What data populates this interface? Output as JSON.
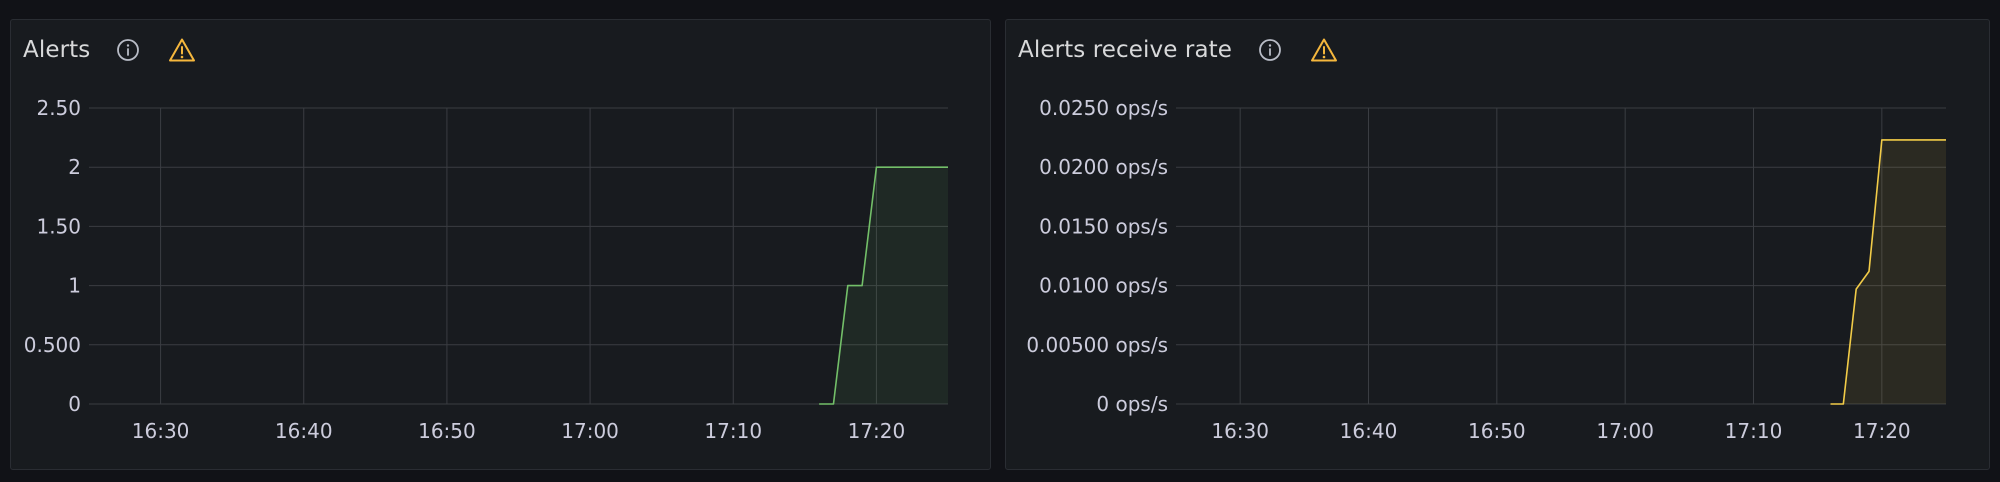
{
  "panels": [
    {
      "title": "Alerts",
      "info_icon": "info-circle-icon",
      "warning_icon": "warning-triangle-icon"
    },
    {
      "title": "Alerts receive rate",
      "info_icon": "info-circle-icon",
      "warning_icon": "warning-triangle-icon"
    }
  ],
  "colors": {
    "background": "#111217",
    "panel": "#181b1f",
    "grid": "#3a3d42",
    "warning": "#f5b73d",
    "info": "#b8bcc6",
    "series_green": "#73bf69",
    "series_yellow": "#f2cc48"
  },
  "chart_data": [
    {
      "type": "area",
      "title": "Alerts",
      "xlabel": "",
      "ylabel": "",
      "x_ticks": [
        "16:30",
        "16:40",
        "16:50",
        "17:00",
        "17:10",
        "17:20"
      ],
      "y_ticks": [
        "0",
        "0.500",
        "1",
        "1.50",
        "2",
        "2.50"
      ],
      "xlim": [
        "16:25",
        "17:25"
      ],
      "ylim": [
        0,
        2.5
      ],
      "grid": true,
      "series": [
        {
          "color": "#73bf69",
          "points": [
            {
              "x": "17:16",
              "y": 0
            },
            {
              "x": "17:17",
              "y": 0
            },
            {
              "x": "17:18",
              "y": 1
            },
            {
              "x": "17:19",
              "y": 1
            },
            {
              "x": "17:20",
              "y": 2
            },
            {
              "x": "17:25",
              "y": 2
            }
          ]
        }
      ]
    },
    {
      "type": "area",
      "title": "Alerts receive rate",
      "xlabel": "",
      "ylabel": "",
      "x_ticks": [
        "16:30",
        "16:40",
        "16:50",
        "17:00",
        "17:10",
        "17:20"
      ],
      "y_ticks": [
        "0 ops/s",
        "0.00500 ops/s",
        "0.0100 ops/s",
        "0.0150 ops/s",
        "0.0200 ops/s",
        "0.0250 ops/s"
      ],
      "xlim": [
        "16:25",
        "17:25"
      ],
      "ylim": [
        0,
        0.025
      ],
      "grid": true,
      "series": [
        {
          "color": "#f2cc48",
          "points": [
            {
              "x": "17:16",
              "y": 0
            },
            {
              "x": "17:17",
              "y": 0
            },
            {
              "x": "17:18",
              "y": 0.0097
            },
            {
              "x": "17:19",
              "y": 0.0112
            },
            {
              "x": "17:20",
              "y": 0.0223
            },
            {
              "x": "17:25",
              "y": 0.0223
            }
          ]
        }
      ]
    }
  ]
}
